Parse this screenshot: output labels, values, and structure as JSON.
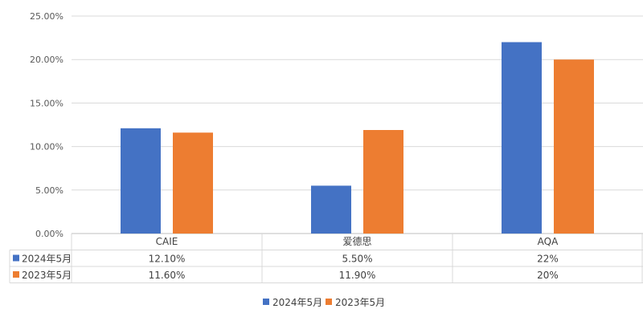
{
  "chart_data": {
    "type": "bar",
    "categories": [
      "CAIE",
      "爱德思",
      "AQA"
    ],
    "series": [
      {
        "name": "2024年5月",
        "color": "#4472C4",
        "values": [
          12.1,
          5.5,
          22
        ],
        "labels": [
          "12.10%",
          "5.50%",
          "22%"
        ]
      },
      {
        "name": "2023年5月",
        "color": "#ED7D31",
        "values": [
          11.6,
          11.9,
          20
        ],
        "labels": [
          "11.60%",
          "11.90%",
          "20%"
        ]
      }
    ],
    "ylim": [
      0,
      25
    ],
    "yticks": [
      "0.00%",
      "5.00%",
      "10.00%",
      "15.00%",
      "20.00%",
      "25.00%"
    ],
    "ytick_values": [
      0,
      5,
      10,
      15,
      20,
      25
    ],
    "grid": true,
    "data_table": true,
    "legend_position": "bottom",
    "title": "",
    "xlabel": "",
    "ylabel": ""
  }
}
